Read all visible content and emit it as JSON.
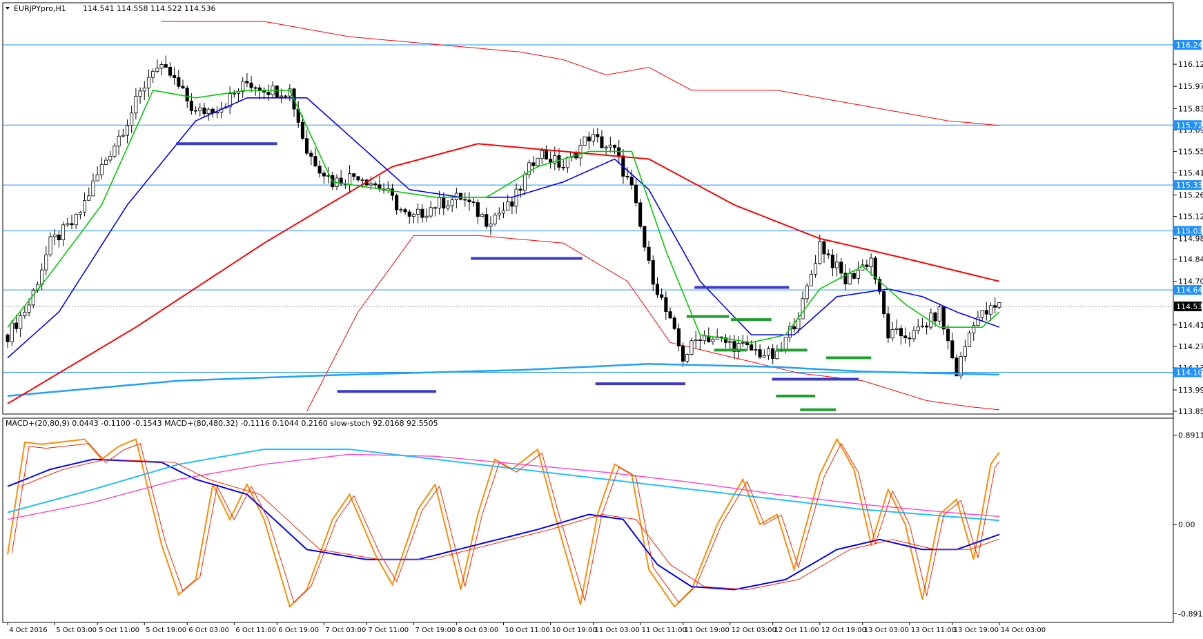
{
  "header": {
    "symbol": "EURJPYpro,H1",
    "ohlc": "114.541 114.558 114.522 114.536",
    "indicator_label": "MACD+(20,80,9) 0.0443 -0.1100 -0.1543  MACD+(80,480,32) -0.1116 0.1044 0.2160  slow-stoch 92.0168 92.5505"
  },
  "colors": {
    "candle_bull": "#ffffff",
    "candle_bear": "#000000",
    "ma_fast": "#00cc00",
    "ma_mid": "#0000ff",
    "ma_slow": "#ff0000",
    "ma_long": "#1ea0ff",
    "envelope": "#ff0000",
    "hline": "#1e90ff",
    "resistance_marker": "#3a3acc",
    "support_marker": "#1fa02e",
    "stoch": "#ff8c00",
    "macd_fast": "#0000ff",
    "macd_slow_a": "#1ec0ff",
    "macd_slow_b": "#ff44cc"
  },
  "chart_data": [
    {
      "type": "candlestick",
      "title": "EURJPYpro,H1",
      "ylim": [
        113.85,
        116.45
      ],
      "y_ticks": [
        "116.120",
        "115.975",
        "115.830",
        "115.690",
        "115.550",
        "115.410",
        "115.265",
        "115.125",
        "114.980",
        "114.845",
        "114.700",
        "114.415",
        "114.275",
        "114.135",
        "113.990",
        "113.850"
      ],
      "price_labels": [
        "116.247",
        "115.722",
        "115.330",
        "115.030",
        "114.644",
        "114.536",
        "114.105"
      ],
      "horizontal_levels": [
        116.247,
        115.722,
        115.33,
        115.03,
        114.644,
        114.105
      ],
      "current_price": 114.536,
      "x_labels": [
        "4 Oct 2016",
        "5 Oct 03:00",
        "5 Oct 11:00",
        "5 Oct 19:00",
        "6 Oct 03:00",
        "6 Oct 11:00",
        "6 Oct 19:00",
        "7 Oct 03:00",
        "7 Oct 11:00",
        "7 Oct 19:00",
        "8 Oct 03:00",
        "10 Oct 11:00",
        "10 Oct 19:00",
        "11 Oct 03:00",
        "11 Oct 11:00",
        "11 Oct 19:00",
        "12 Oct 03:00",
        "12 Oct 11:00",
        "12 Oct 19:00",
        "13 Oct 03:00",
        "13 Oct 11:00",
        "13 Oct 19:00",
        "14 Oct 03:00"
      ],
      "close_anchors": [
        [
          0,
          114.35
        ],
        [
          5,
          114.55
        ],
        [
          10,
          114.95
        ],
        [
          16,
          115.1
        ],
        [
          22,
          115.45
        ],
        [
          28,
          115.75
        ],
        [
          34,
          116.1
        ],
        [
          38,
          116.05
        ],
        [
          44,
          115.8
        ],
        [
          50,
          115.85
        ],
        [
          56,
          116.0
        ],
        [
          62,
          115.95
        ],
        [
          66,
          115.95
        ],
        [
          70,
          115.55
        ],
        [
          76,
          115.35
        ],
        [
          82,
          115.4
        ],
        [
          88,
          115.3
        ],
        [
          94,
          115.1
        ],
        [
          100,
          115.2
        ],
        [
          106,
          115.25
        ],
        [
          112,
          115.1
        ],
        [
          118,
          115.2
        ],
        [
          124,
          115.55
        ],
        [
          130,
          115.45
        ],
        [
          136,
          115.65
        ],
        [
          142,
          115.55
        ],
        [
          146,
          115.3
        ],
        [
          150,
          114.8
        ],
        [
          154,
          114.5
        ],
        [
          158,
          114.2
        ],
        [
          162,
          114.35
        ],
        [
          168,
          114.3
        ],
        [
          174,
          114.25
        ],
        [
          180,
          114.2
        ],
        [
          186,
          114.55
        ],
        [
          190,
          114.95
        ],
        [
          196,
          114.7
        ],
        [
          202,
          114.85
        ],
        [
          206,
          114.35
        ],
        [
          212,
          114.35
        ],
        [
          218,
          114.5
        ],
        [
          222,
          114.1
        ],
        [
          226,
          114.45
        ],
        [
          232,
          114.54
        ]
      ],
      "ma_fast_anchors": [
        [
          0,
          114.4
        ],
        [
          10,
          114.75
        ],
        [
          22,
          115.2
        ],
        [
          34,
          115.95
        ],
        [
          44,
          115.9
        ],
        [
          56,
          115.95
        ],
        [
          66,
          115.95
        ],
        [
          76,
          115.35
        ],
        [
          88,
          115.3
        ],
        [
          100,
          115.25
        ],
        [
          112,
          115.25
        ],
        [
          124,
          115.45
        ],
        [
          136,
          115.55
        ],
        [
          146,
          115.55
        ],
        [
          154,
          114.9
        ],
        [
          162,
          114.35
        ],
        [
          174,
          114.3
        ],
        [
          182,
          114.35
        ],
        [
          190,
          114.65
        ],
        [
          200,
          114.8
        ],
        [
          210,
          114.55
        ],
        [
          218,
          114.4
        ],
        [
          228,
          114.4
        ],
        [
          232,
          114.5
        ]
      ],
      "ma_mid_anchors": [
        [
          0,
          114.2
        ],
        [
          12,
          114.5
        ],
        [
          28,
          115.2
        ],
        [
          44,
          115.75
        ],
        [
          56,
          115.9
        ],
        [
          70,
          115.9
        ],
        [
          82,
          115.6
        ],
        [
          94,
          115.3
        ],
        [
          106,
          115.25
        ],
        [
          118,
          115.25
        ],
        [
          130,
          115.35
        ],
        [
          142,
          115.5
        ],
        [
          150,
          115.3
        ],
        [
          162,
          114.7
        ],
        [
          174,
          114.35
        ],
        [
          184,
          114.35
        ],
        [
          194,
          114.6
        ],
        [
          206,
          114.65
        ],
        [
          214,
          114.6
        ],
        [
          222,
          114.5
        ],
        [
          232,
          114.4
        ]
      ],
      "ma_slow_anchors": [
        [
          0,
          113.9
        ],
        [
          30,
          114.4
        ],
        [
          60,
          114.95
        ],
        [
          90,
          115.45
        ],
        [
          110,
          115.6
        ],
        [
          130,
          115.55
        ],
        [
          150,
          115.5
        ],
        [
          170,
          115.2
        ],
        [
          190,
          114.98
        ],
        [
          210,
          114.85
        ],
        [
          232,
          114.7
        ]
      ],
      "ma_long_anchors": [
        [
          0,
          113.95
        ],
        [
          40,
          114.05
        ],
        [
          80,
          114.09
        ],
        [
          120,
          114.12
        ],
        [
          150,
          114.16
        ],
        [
          180,
          114.14
        ],
        [
          200,
          114.11
        ],
        [
          232,
          114.09
        ]
      ],
      "envelope_upper_anchors": [
        [
          36,
          116.4
        ],
        [
          60,
          116.4
        ],
        [
          80,
          116.3
        ],
        [
          100,
          116.25
        ],
        [
          120,
          116.2
        ],
        [
          130,
          116.15
        ],
        [
          140,
          116.05
        ],
        [
          150,
          116.1
        ],
        [
          160,
          115.95
        ],
        [
          180,
          115.95
        ],
        [
          200,
          115.85
        ],
        [
          220,
          115.75
        ],
        [
          232,
          115.72
        ]
      ],
      "envelope_lower_anchors": [
        [
          70,
          113.85
        ],
        [
          82,
          114.5
        ],
        [
          95,
          115.0
        ],
        [
          110,
          115.0
        ],
        [
          130,
          114.95
        ],
        [
          145,
          114.7
        ],
        [
          155,
          114.3
        ],
        [
          170,
          114.2
        ],
        [
          185,
          114.1
        ],
        [
          200,
          114.05
        ],
        [
          215,
          113.92
        ],
        [
          225,
          113.88
        ],
        [
          232,
          113.86
        ]
      ],
      "resistance_markers": [
        [
          270,
          425,
          115.6
        ],
        [
          722,
          893,
          114.85
        ],
        [
          1065,
          1210,
          114.66
        ]
      ],
      "support_markers": [
        [
          517,
          669,
          113.98
        ],
        [
          913,
          1051,
          114.03
        ],
        [
          1184,
          1317,
          114.06
        ]
      ],
      "green_marks": [
        [
          1053,
          1118,
          114.47
        ],
        [
          1121,
          1183,
          114.45
        ],
        [
          1095,
          1145,
          114.25
        ],
        [
          1190,
          1238,
          114.25
        ],
        [
          1267,
          1336,
          114.2
        ],
        [
          1190,
          1250,
          113.95
        ],
        [
          1227,
          1282,
          113.86
        ]
      ]
    },
    {
      "type": "line",
      "title": "MACD+ / slow-stoch",
      "ylim": [
        -0.95,
        0.95
      ],
      "y_ticks": [
        "0.8911",
        "0.00",
        "-0.8911"
      ],
      "series": [
        {
          "name": "slow-stoch",
          "points": [
            [
              0,
              -0.3
            ],
            [
              4,
              0.82
            ],
            [
              8,
              0.8
            ],
            [
              12,
              0.82
            ],
            [
              18,
              0.85
            ],
            [
              22,
              0.65
            ],
            [
              26,
              0.78
            ],
            [
              30,
              0.85
            ],
            [
              36,
              -0.2
            ],
            [
              40,
              -0.7
            ],
            [
              44,
              -0.55
            ],
            [
              48,
              0.4
            ],
            [
              52,
              0.05
            ],
            [
              56,
              0.4
            ],
            [
              60,
              0.05
            ],
            [
              66,
              -0.82
            ],
            [
              70,
              -0.65
            ],
            [
              76,
              0.05
            ],
            [
              80,
              0.3
            ],
            [
              86,
              -0.3
            ],
            [
              90,
              -0.6
            ],
            [
              96,
              0.15
            ],
            [
              100,
              0.4
            ],
            [
              106,
              -0.65
            ],
            [
              110,
              0.1
            ],
            [
              114,
              0.65
            ],
            [
              118,
              0.55
            ],
            [
              124,
              0.75
            ],
            [
              128,
              0.1
            ],
            [
              134,
              -0.8
            ],
            [
              138,
              0.1
            ],
            [
              142,
              0.6
            ],
            [
              146,
              0.5
            ],
            [
              150,
              -0.45
            ],
            [
              156,
              -0.82
            ],
            [
              160,
              -0.65
            ],
            [
              166,
              0.0
            ],
            [
              172,
              0.45
            ],
            [
              176,
              0.0
            ],
            [
              180,
              0.1
            ],
            [
              184,
              -0.45
            ],
            [
              190,
              0.5
            ],
            [
              194,
              0.85
            ],
            [
              198,
              0.55
            ],
            [
              202,
              -0.2
            ],
            [
              206,
              0.35
            ],
            [
              210,
              0.0
            ],
            [
              214,
              -0.75
            ],
            [
              218,
              0.1
            ],
            [
              222,
              0.25
            ],
            [
              226,
              -0.35
            ],
            [
              230,
              0.6
            ],
            [
              232,
              0.72
            ]
          ]
        },
        {
          "name": "MACD+(20,80,9)",
          "points": [
            [
              0,
              0.38
            ],
            [
              10,
              0.55
            ],
            [
              20,
              0.65
            ],
            [
              36,
              0.62
            ],
            [
              44,
              0.45
            ],
            [
              56,
              0.3
            ],
            [
              70,
              -0.25
            ],
            [
              84,
              -0.35
            ],
            [
              96,
              -0.35
            ],
            [
              110,
              -0.2
            ],
            [
              124,
              -0.05
            ],
            [
              136,
              0.1
            ],
            [
              144,
              0.05
            ],
            [
              152,
              -0.4
            ],
            [
              160,
              -0.62
            ],
            [
              170,
              -0.65
            ],
            [
              182,
              -0.55
            ],
            [
              194,
              -0.25
            ],
            [
              204,
              -0.15
            ],
            [
              214,
              -0.25
            ],
            [
              222,
              -0.25
            ],
            [
              232,
              -0.1
            ]
          ]
        },
        {
          "name": "MACD+(80,480,32)",
          "points": [
            [
              0,
              0.12
            ],
            [
              20,
              0.35
            ],
            [
              40,
              0.6
            ],
            [
              60,
              0.75
            ],
            [
              80,
              0.75
            ],
            [
              100,
              0.65
            ],
            [
              120,
              0.55
            ],
            [
              140,
              0.45
            ],
            [
              160,
              0.35
            ],
            [
              180,
              0.25
            ],
            [
              200,
              0.15
            ],
            [
              220,
              0.08
            ],
            [
              232,
              0.04
            ]
          ]
        },
        {
          "name": "MACD+(80,480,32)",
          "points": [
            [
              0,
              0.05
            ],
            [
              20,
              0.22
            ],
            [
              40,
              0.45
            ],
            [
              60,
              0.6
            ],
            [
              80,
              0.7
            ],
            [
              100,
              0.68
            ],
            [
              120,
              0.6
            ],
            [
              140,
              0.52
            ],
            [
              160,
              0.42
            ],
            [
              180,
              0.3
            ],
            [
              200,
              0.2
            ],
            [
              220,
              0.12
            ],
            [
              232,
              0.08
            ]
          ]
        }
      ]
    }
  ]
}
